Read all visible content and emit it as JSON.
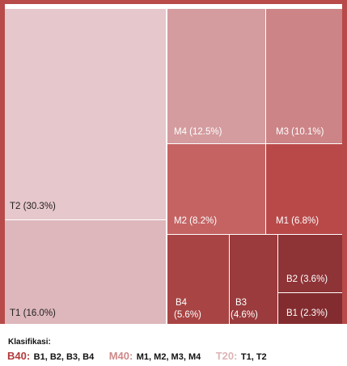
{
  "chart_data": {
    "type": "treemap",
    "cells": [
      {
        "id": "T2",
        "label": "T2 (30.3%)",
        "value": 30.3,
        "group": "T20",
        "color": "#e6c7cb"
      },
      {
        "id": "T1",
        "label": "T1 (16.0%)",
        "value": 16.0,
        "group": "T20",
        "color": "#ddb7bb"
      },
      {
        "id": "M4",
        "label": "M4 (12.5%)",
        "value": 12.5,
        "group": "M40",
        "color": "#d49c9f"
      },
      {
        "id": "M3",
        "label": "M3 (10.1%)",
        "value": 10.1,
        "group": "M40",
        "color": "#cc8487"
      },
      {
        "id": "M2",
        "label": "M2 (8.2%)",
        "value": 8.2,
        "group": "M40",
        "color": "#c56363"
      },
      {
        "id": "M1",
        "label": "M1 (6.8%)",
        "value": 6.8,
        "group": "M40",
        "color": "#b94949"
      },
      {
        "id": "B4",
        "label": "B4\n(5.6%)",
        "value": 5.6,
        "group": "B40",
        "color": "#a94444"
      },
      {
        "id": "B3",
        "label": "B3\n(4.6%)",
        "value": 4.6,
        "group": "B40",
        "color": "#9b3b3d"
      },
      {
        "id": "B2",
        "label": "B2 (3.6%)",
        "value": 3.6,
        "group": "B40",
        "color": "#8e3336"
      },
      {
        "id": "B1",
        "label": "B1 (2.3%)",
        "value": 2.3,
        "group": "B40",
        "color": "#832c2f"
      }
    ]
  },
  "legend": {
    "title": "Klasifikasi:",
    "groups": [
      {
        "key": "B40:",
        "members": "B1, B2, B3, B4",
        "color": "#b33a3a"
      },
      {
        "key": "M40:",
        "members": "M1, M2, M3, M4",
        "color": "#cf8a8a"
      },
      {
        "key": "T20:",
        "members": "T1, T2",
        "color": "#dcb4b4"
      }
    ]
  },
  "colors": {
    "frame": "#b84a4a",
    "gap": "#ffffff"
  }
}
